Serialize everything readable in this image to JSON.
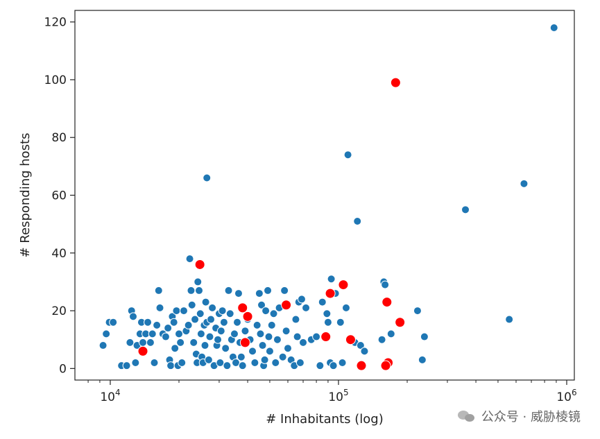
{
  "chart_data": {
    "type": "scatter",
    "xlabel": "# Inhabitants (log)",
    "ylabel": "# Responding hosts",
    "x_scale": "log",
    "xlim": [
      7000,
      1080000
    ],
    "ylim": [
      -4,
      124
    ],
    "x_ticks": [
      {
        "value": 10000,
        "base": "10",
        "exp": "4"
      },
      {
        "value": 100000,
        "base": "10",
        "exp": "5"
      },
      {
        "value": 1000000,
        "base": "10",
        "exp": "6"
      }
    ],
    "y_ticks": [
      {
        "value": 0,
        "label": "0"
      },
      {
        "value": 20,
        "label": "20"
      },
      {
        "value": 40,
        "label": "40"
      },
      {
        "value": 60,
        "label": "60"
      },
      {
        "value": 80,
        "label": "80"
      },
      {
        "value": 100,
        "label": "100"
      },
      {
        "value": 120,
        "label": "120"
      }
    ],
    "grid": false,
    "legend": "none",
    "series": [
      {
        "color": "#1f77b4",
        "points": [
          [
            880000,
            118
          ],
          [
            650000,
            64
          ],
          [
            360000,
            55
          ],
          [
            560000,
            17
          ],
          [
            110000,
            74
          ],
          [
            121000,
            51
          ],
          [
            26500,
            66
          ],
          [
            9300,
            8
          ],
          [
            9600,
            12
          ],
          [
            9900,
            16
          ],
          [
            10300,
            16
          ],
          [
            11200,
            1
          ],
          [
            11800,
            1
          ],
          [
            12200,
            9
          ],
          [
            12400,
            20
          ],
          [
            12600,
            18
          ],
          [
            12900,
            2
          ],
          [
            13100,
            8
          ],
          [
            13500,
            12
          ],
          [
            13700,
            16
          ],
          [
            13900,
            9
          ],
          [
            14300,
            12
          ],
          [
            14600,
            16
          ],
          [
            15000,
            9
          ],
          [
            15300,
            12
          ],
          [
            15600,
            2
          ],
          [
            16000,
            15
          ],
          [
            16300,
            27
          ],
          [
            16500,
            21
          ],
          [
            17000,
            12
          ],
          [
            17500,
            11
          ],
          [
            17900,
            14
          ],
          [
            18200,
            3
          ],
          [
            18400,
            1
          ],
          [
            18700,
            18
          ],
          [
            19000,
            16
          ],
          [
            19200,
            7
          ],
          [
            19500,
            20
          ],
          [
            19800,
            1
          ],
          [
            20000,
            12
          ],
          [
            20300,
            9
          ],
          [
            20600,
            2
          ],
          [
            21000,
            20
          ],
          [
            21500,
            13
          ],
          [
            22000,
            15
          ],
          [
            22300,
            38
          ],
          [
            22600,
            27
          ],
          [
            22800,
            22
          ],
          [
            23200,
            9
          ],
          [
            23500,
            17
          ],
          [
            23800,
            5
          ],
          [
            24000,
            2
          ],
          [
            24200,
            30
          ],
          [
            24500,
            27
          ],
          [
            24800,
            19
          ],
          [
            25000,
            12
          ],
          [
            25200,
            4
          ],
          [
            25500,
            2
          ],
          [
            25800,
            15
          ],
          [
            26000,
            8
          ],
          [
            26200,
            23
          ],
          [
            26500,
            16
          ],
          [
            27000,
            3
          ],
          [
            27300,
            11
          ],
          [
            27600,
            17
          ],
          [
            28000,
            21
          ],
          [
            28500,
            1
          ],
          [
            29000,
            14
          ],
          [
            29300,
            8
          ],
          [
            29600,
            10
          ],
          [
            30000,
            19
          ],
          [
            30300,
            2
          ],
          [
            30600,
            13
          ],
          [
            31000,
            20
          ],
          [
            31500,
            16
          ],
          [
            32000,
            7
          ],
          [
            32500,
            1
          ],
          [
            33000,
            27
          ],
          [
            33500,
            19
          ],
          [
            34000,
            10
          ],
          [
            34500,
            4
          ],
          [
            35000,
            12
          ],
          [
            35500,
            2
          ],
          [
            36000,
            16
          ],
          [
            36500,
            26
          ],
          [
            37000,
            9
          ],
          [
            37500,
            4
          ],
          [
            38000,
            1
          ],
          [
            39000,
            13
          ],
          [
            40000,
            17
          ],
          [
            41000,
            10
          ],
          [
            42000,
            6
          ],
          [
            43000,
            2
          ],
          [
            44000,
            15
          ],
          [
            45000,
            26
          ],
          [
            45500,
            12
          ],
          [
            46000,
            22
          ],
          [
            46500,
            8
          ],
          [
            47000,
            1
          ],
          [
            47500,
            3
          ],
          [
            48000,
            20
          ],
          [
            49000,
            27
          ],
          [
            49500,
            11
          ],
          [
            50000,
            6
          ],
          [
            51000,
            15
          ],
          [
            52000,
            19
          ],
          [
            53000,
            2
          ],
          [
            54000,
            10
          ],
          [
            55000,
            21
          ],
          [
            57000,
            4
          ],
          [
            58000,
            27
          ],
          [
            59000,
            13
          ],
          [
            60000,
            7
          ],
          [
            62000,
            3
          ],
          [
            64000,
            1
          ],
          [
            65000,
            17
          ],
          [
            66000,
            11
          ],
          [
            67000,
            23
          ],
          [
            68000,
            2
          ],
          [
            69000,
            24
          ],
          [
            70000,
            9
          ],
          [
            72000,
            21
          ],
          [
            76000,
            10
          ],
          [
            80000,
            11
          ],
          [
            83000,
            1
          ],
          [
            85000,
            23
          ],
          [
            87000,
            11
          ],
          [
            89000,
            19
          ],
          [
            90000,
            16
          ],
          [
            92000,
            2
          ],
          [
            93000,
            31
          ],
          [
            95000,
            1
          ],
          [
            97000,
            26
          ],
          [
            102000,
            16
          ],
          [
            104000,
            2
          ],
          [
            108000,
            21
          ],
          [
            118000,
            9
          ],
          [
            125000,
            8
          ],
          [
            130000,
            6
          ],
          [
            155000,
            10
          ],
          [
            158000,
            30
          ],
          [
            160000,
            29
          ],
          [
            170000,
            12
          ],
          [
            222000,
            20
          ],
          [
            233000,
            3
          ],
          [
            238000,
            11
          ]
        ]
      },
      {
        "color": "#ff0000",
        "points": [
          [
            178000,
            99
          ],
          [
            24700,
            36
          ],
          [
            105000,
            29
          ],
          [
            92000,
            26
          ],
          [
            163000,
            23
          ],
          [
            59000,
            22
          ],
          [
            38000,
            21
          ],
          [
            40000,
            18
          ],
          [
            186000,
            16
          ],
          [
            88000,
            11
          ],
          [
            113000,
            10
          ],
          [
            39000,
            9
          ],
          [
            13900,
            6
          ],
          [
            165000,
            2
          ],
          [
            126000,
            1
          ],
          [
            161000,
            1
          ]
        ]
      }
    ]
  },
  "watermark": {
    "text": "公众号 · 威胁棱镜"
  }
}
